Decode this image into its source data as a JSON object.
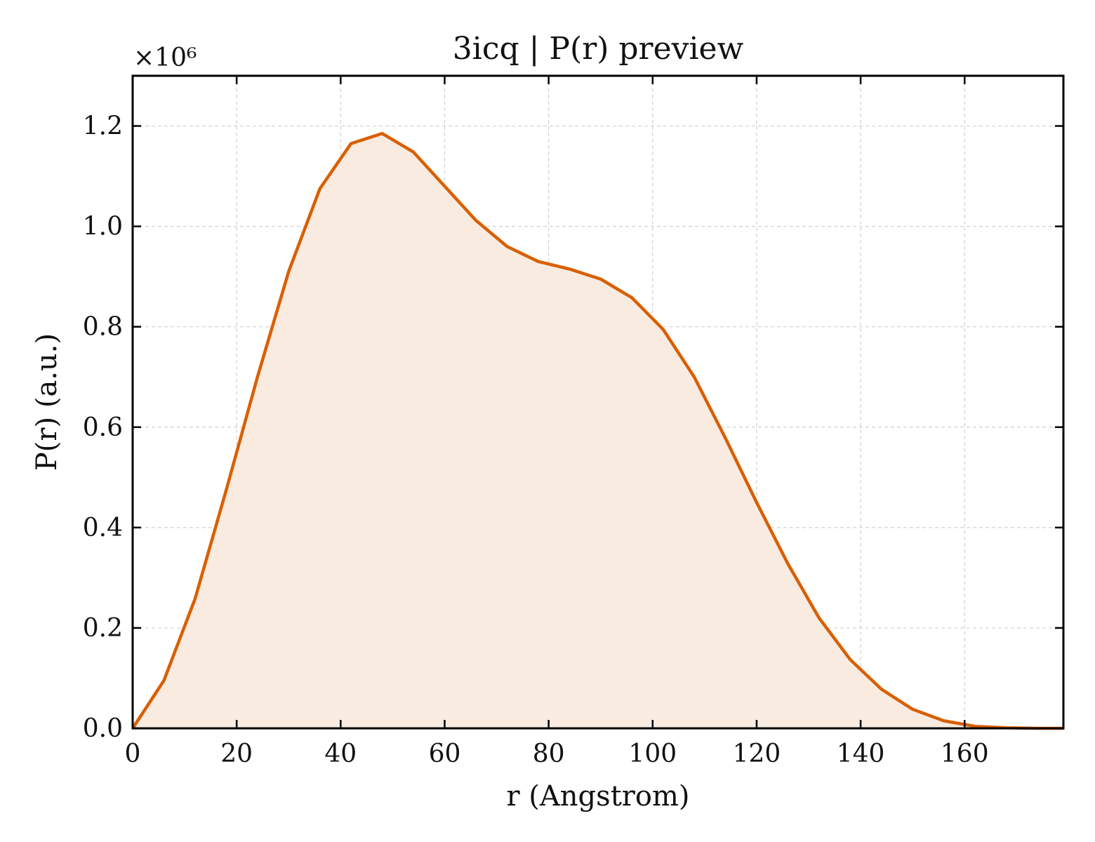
{
  "chart_data": {
    "type": "area",
    "title": "3icq | P(r) preview",
    "xlabel": "r (Angstrom)",
    "ylabel": "P(r) (a.u.)",
    "y_multiplier_label": "×10⁶",
    "xlim": [
      0,
      179
    ],
    "ylim": [
      0,
      1.3
    ],
    "grid": true,
    "line_color": "#d95f02",
    "fill_color": "#f9ebe0",
    "x_ticks": [
      0,
      20,
      40,
      60,
      80,
      100,
      120,
      140,
      160
    ],
    "x_tick_labels": [
      "0",
      "20",
      "40",
      "60",
      "80",
      "100",
      "120",
      "140",
      "160"
    ],
    "y_ticks": [
      0,
      0.2,
      0.4,
      0.6,
      0.8,
      1.0,
      1.2
    ],
    "y_tick_labels": [
      "0.0",
      "0.2",
      "0.4",
      "0.6",
      "0.8",
      "1.0",
      "1.2"
    ],
    "series": [
      {
        "x": [
          0,
          6,
          12,
          18,
          24,
          30,
          36,
          42,
          48,
          54,
          60,
          66,
          72,
          78,
          84,
          90,
          96,
          102,
          108,
          114,
          120,
          126,
          132,
          138,
          144,
          150,
          156,
          162,
          168,
          174,
          179
        ],
        "y": [
          0.0,
          0.095,
          0.258,
          0.475,
          0.7,
          0.91,
          1.075,
          1.165,
          1.185,
          1.148,
          1.08,
          1.012,
          0.96,
          0.93,
          0.915,
          0.895,
          0.858,
          0.795,
          0.7,
          0.578,
          0.45,
          0.328,
          0.22,
          0.137,
          0.078,
          0.038,
          0.015,
          0.004,
          0.001,
          0.0,
          0.0
        ]
      }
    ]
  }
}
